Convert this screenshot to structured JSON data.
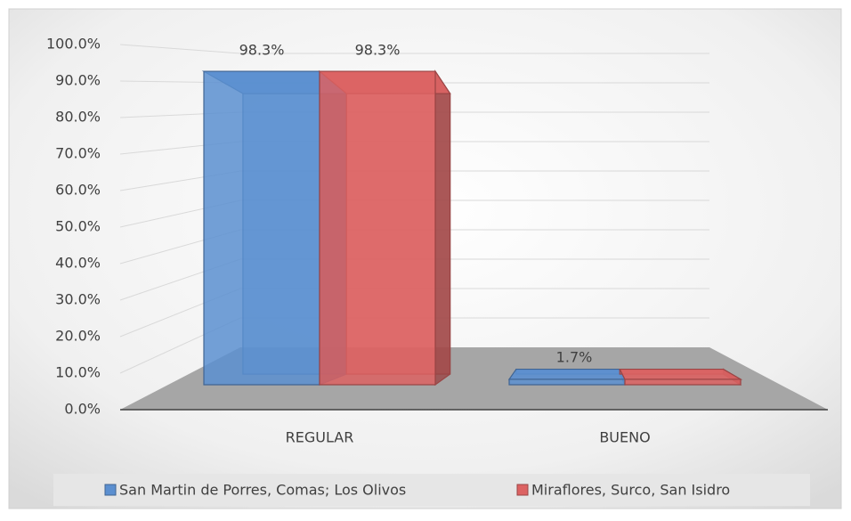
{
  "chart_data": {
    "type": "bar3d",
    "categories": [
      "REGULAR",
      "BUENO"
    ],
    "series": [
      {
        "name": "San Martin de Porres, Comas; Los Olivos",
        "color": "#5b8fd0",
        "values": [
          98.3,
          1.7
        ],
        "value_labels": [
          "98.3%",
          "1.7%"
        ]
      },
      {
        "name": "Miraflores, Surco, San Isidro",
        "color": "#dc6262",
        "values": [
          98.3,
          1.7
        ],
        "value_labels": [
          "98.3%",
          null
        ]
      }
    ],
    "ylim": [
      0,
      100
    ],
    "yticks": [
      {
        "value": 0,
        "label": "0.0%"
      },
      {
        "value": 10,
        "label": "10.0%"
      },
      {
        "value": 20,
        "label": "20.0%"
      },
      {
        "value": 30,
        "label": "30.0%"
      },
      {
        "value": 40,
        "label": "40.0%"
      },
      {
        "value": 50,
        "label": "50.0%"
      },
      {
        "value": 60,
        "label": "60.0%"
      },
      {
        "value": 70,
        "label": "70.0%"
      },
      {
        "value": 80,
        "label": "80.0%"
      },
      {
        "value": 90,
        "label": "90.0%"
      },
      {
        "value": 100,
        "label": "100.0%"
      }
    ],
    "grid": true,
    "legend": "bottom"
  }
}
